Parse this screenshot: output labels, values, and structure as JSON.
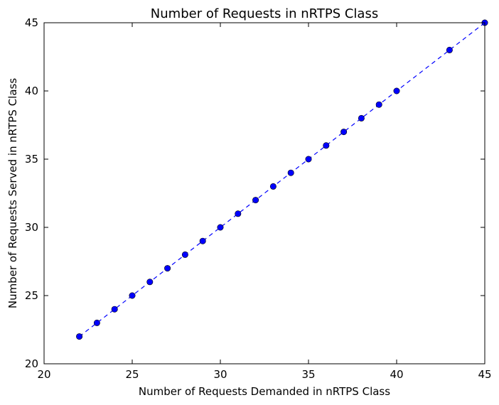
{
  "chart_data": {
    "type": "scatter",
    "title": "Number of Requests in nRTPS Class",
    "xlabel": "Number of Requests Demanded in nRTPS Class",
    "ylabel": "Number of Requests Served in nRTPS Class",
    "xlim": [
      20,
      45
    ],
    "ylim": [
      20,
      45
    ],
    "xticks": [
      20,
      25,
      30,
      35,
      40,
      45
    ],
    "yticks": [
      20,
      25,
      30,
      35,
      40,
      45
    ],
    "xtick_labels": [
      "20",
      "25",
      "30",
      "35",
      "40",
      "45"
    ],
    "ytick_labels": [
      "20",
      "25",
      "30",
      "35",
      "40",
      "45"
    ],
    "grid": false,
    "series": [
      {
        "x": [
          22,
          23,
          24,
          25,
          26,
          27,
          28,
          29,
          30,
          31,
          32,
          33,
          34,
          35,
          36,
          37,
          38,
          39,
          40,
          43,
          45
        ],
        "y": [
          22,
          23,
          24,
          25,
          26,
          27,
          28,
          29,
          30,
          31,
          32,
          33,
          34,
          35,
          36,
          37,
          38,
          39,
          40,
          43,
          45
        ],
        "marker": "circle",
        "line_style": "dashed",
        "color": "#0000ff"
      }
    ]
  }
}
